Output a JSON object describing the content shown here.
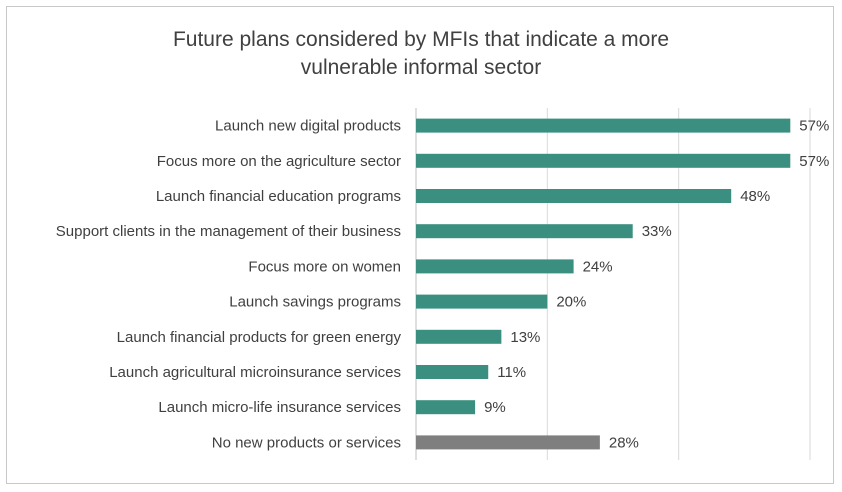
{
  "chart_data": {
    "type": "bar",
    "orientation": "horizontal",
    "title_lines": [
      "Future plans considered by MFIs that indicate a more",
      "vulnerable informal sector"
    ],
    "categories": [
      "Launch new digital products",
      "Focus more on the agriculture sector",
      "Launch financial education programs",
      "Support clients in the management of their business",
      "Focus more on women",
      "Launch savings programs",
      "Launch financial products for green energy",
      "Launch agricultural microinsurance services",
      "Launch micro-life insurance services",
      "No new products or services"
    ],
    "values": [
      57,
      57,
      48,
      33,
      24,
      20,
      13,
      11,
      9,
      28
    ],
    "value_labels": [
      "57%",
      "57%",
      "48%",
      "33%",
      "24%",
      "20%",
      "13%",
      "11%",
      "9%",
      "28%"
    ],
    "bar_colors": [
      "#3a8f80",
      "#3a8f80",
      "#3a8f80",
      "#3a8f80",
      "#3a8f80",
      "#3a8f80",
      "#3a8f80",
      "#3a8f80",
      "#3a8f80",
      "#7f7f7f"
    ],
    "xlim": [
      0,
      60
    ],
    "grid": true,
    "legend": false
  }
}
